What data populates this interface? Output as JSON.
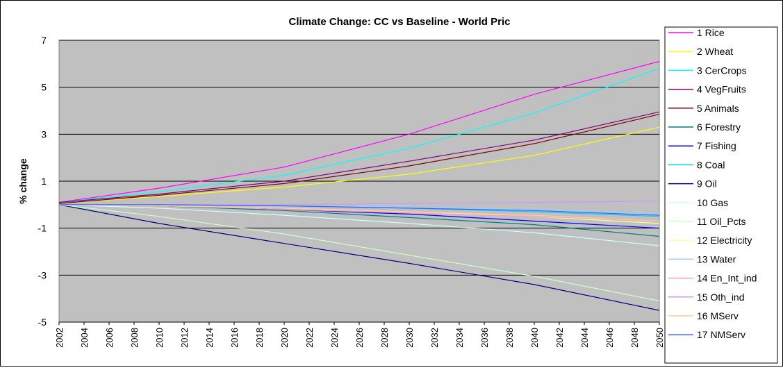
{
  "chart_data": {
    "type": "line",
    "title": "Climate Change: CC vs Baseline  -  World Pric",
    "xlabel": "",
    "ylabel": "% change",
    "ylim": [
      -5,
      7
    ],
    "yticks": [
      "7",
      "5",
      "3",
      "1",
      "-1",
      "-3",
      "-5"
    ],
    "xticks": [
      "2002",
      "2004",
      "2006",
      "2008",
      "2010",
      "2012",
      "2014",
      "2016",
      "2018",
      "2020",
      "2022",
      "2024",
      "2026",
      "2028",
      "2030",
      "2032",
      "2034",
      "2036",
      "2038",
      "2040",
      "2042",
      "2044",
      "2046",
      "2048",
      "2050"
    ],
    "x": [
      2002,
      2010,
      2020,
      2030,
      2040,
      2050
    ],
    "grid": "horizontal",
    "legend_position": "right",
    "plot_background": "#c0c0c0",
    "series": [
      {
        "name": "1 Rice",
        "color": "#ff00ff",
        "values": [
          0.1,
          0.7,
          1.6,
          3.0,
          4.7,
          6.1
        ]
      },
      {
        "name": "2 Wheat",
        "color": "#ffff00",
        "values": [
          0.05,
          0.35,
          0.75,
          1.3,
          2.1,
          3.3
        ]
      },
      {
        "name": "3 CerCrops",
        "color": "#00ffff",
        "values": [
          0.1,
          0.55,
          1.25,
          2.4,
          3.9,
          5.8
        ]
      },
      {
        "name": "4 VegFruits",
        "color": "#800080",
        "values": [
          0.1,
          0.45,
          1.0,
          1.85,
          2.75,
          3.95
        ]
      },
      {
        "name": "5 Animals",
        "color": "#800000",
        "values": [
          0.05,
          0.4,
          0.9,
          1.65,
          2.6,
          3.85
        ]
      },
      {
        "name": "6 Forestry",
        "color": "#008080",
        "values": [
          0.0,
          -0.05,
          -0.25,
          -0.55,
          -0.85,
          -1.35
        ]
      },
      {
        "name": "7 Fishing",
        "color": "#0000ff",
        "values": [
          0.0,
          -0.05,
          -0.2,
          -0.4,
          -0.7,
          -1.0
        ]
      },
      {
        "name": "8 Coal",
        "color": "#00ccff",
        "values": [
          0.0,
          0.0,
          -0.05,
          -0.15,
          -0.3,
          -0.5
        ]
      },
      {
        "name": "9 Oil",
        "color": "#000080",
        "values": [
          0.0,
          -0.8,
          -1.65,
          -2.5,
          -3.4,
          -4.5
        ]
      },
      {
        "name": "10 Gas",
        "color": "#ccffff",
        "values": [
          0.0,
          -0.15,
          -0.45,
          -0.8,
          -1.2,
          -1.75
        ]
      },
      {
        "name": "11 Oil_Pcts",
        "color": "#ccffcc",
        "values": [
          0.0,
          -0.5,
          -1.25,
          -2.15,
          -3.05,
          -4.1
        ]
      },
      {
        "name": "12 Electricity",
        "color": "#ffff99",
        "values": [
          0.0,
          -0.05,
          -0.15,
          -0.3,
          -0.5,
          -0.8
        ]
      },
      {
        "name": "13 Water",
        "color": "#99ccff",
        "values": [
          0.0,
          0.0,
          -0.05,
          -0.1,
          -0.2,
          -0.35
        ]
      },
      {
        "name": "14 En_Int_ind",
        "color": "#ff99cc",
        "values": [
          0.0,
          -0.05,
          -0.2,
          -0.35,
          -0.5,
          -0.7
        ]
      },
      {
        "name": "15 Oth_ind",
        "color": "#cc99ff",
        "values": [
          0.0,
          0.0,
          0.0,
          0.05,
          0.1,
          0.15
        ]
      },
      {
        "name": "16 MServ",
        "color": "#ffcc99",
        "values": [
          0.0,
          -0.05,
          -0.15,
          -0.3,
          -0.45,
          -0.7
        ]
      },
      {
        "name": "17 NMServ",
        "color": "#3366ff",
        "values": [
          0.0,
          0.0,
          -0.05,
          -0.15,
          -0.25,
          -0.45
        ]
      }
    ]
  }
}
